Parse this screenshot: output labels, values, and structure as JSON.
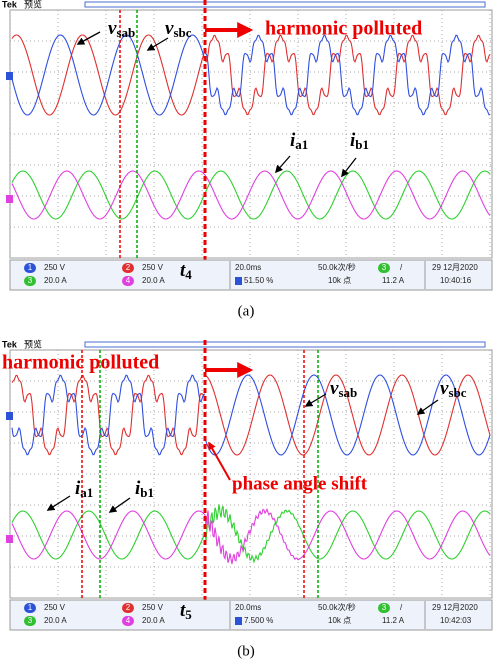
{
  "panels": [
    {
      "tek": "Tek",
      "mode": "预览",
      "harmonic": "harmonic polluted",
      "vsab": {
        "var": "v",
        "sub": "sab"
      },
      "vsbc": {
        "var": "v",
        "sub": "sbc"
      },
      "ia1": {
        "var": "i",
        "sub": "a1"
      },
      "ib1": {
        "var": "i",
        "sub": "b1"
      },
      "tmark": {
        "var": "t",
        "sub": "4"
      },
      "status": {
        "ch1": "1",
        "ch1v": "250 V",
        "ch2": "2",
        "ch2v": "250 V",
        "ch3": "3",
        "ch3v": "20.0 A",
        "ch4": "4",
        "ch4v": "20.0 A",
        "timebase": "20.0ms",
        "pos": "51.50 %",
        "rate": "50.0k次/秒",
        "points": "10k 点",
        "trig": "3",
        "slope": "/",
        "level": "11.2 A",
        "date": "29 12月2020",
        "time": "10:40:16"
      },
      "caption": "(a)"
    },
    {
      "tek": "Tek",
      "mode": "预览",
      "harmonic": "harmonic polluted",
      "vsab": {
        "var": "v",
        "sub": "sab"
      },
      "vsbc": {
        "var": "v",
        "sub": "sbc"
      },
      "ia1": {
        "var": "i",
        "sub": "a1"
      },
      "ib1": {
        "var": "i",
        "sub": "b1"
      },
      "tmark": {
        "var": "t",
        "sub": "5"
      },
      "shift": "phase angle shift",
      "status": {
        "ch1": "1",
        "ch1v": "250 V",
        "ch2": "2",
        "ch2v": "250 V",
        "ch3": "3",
        "ch3v": "20.0 A",
        "ch4": "4",
        "ch4v": "20.0 A",
        "timebase": "20.0ms",
        "pos": "7.500 %",
        "rate": "50.0k次/秒",
        "points": "10k 点",
        "trig": "3",
        "slope": "/",
        "level": "11.2 A",
        "date": "29 12月2020",
        "time": "10:42:03"
      },
      "caption": "(b)"
    }
  ]
}
